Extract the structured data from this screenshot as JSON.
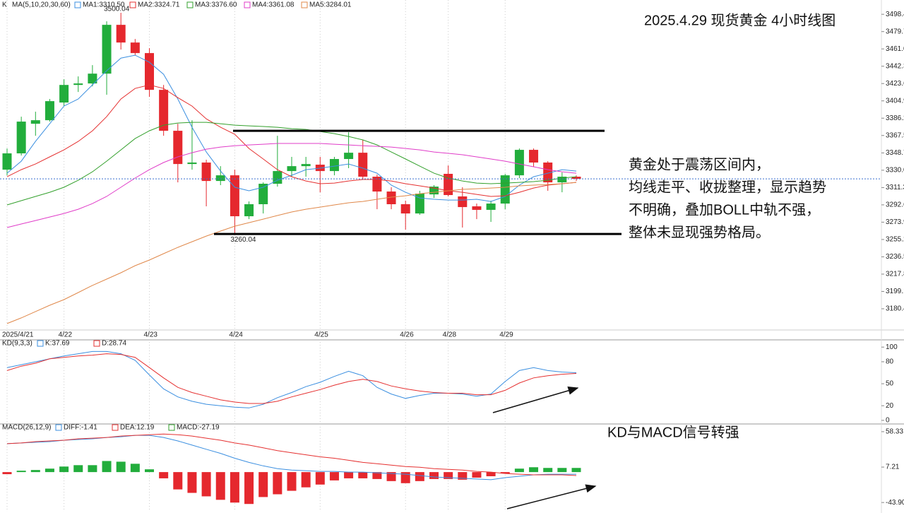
{
  "chart_data": [
    {
      "type": "candlestick",
      "symbol_label": "K",
      "indicator": "MA(5,10,20,30,60)",
      "title": "2025.4.29 现货黄金 4小时线图",
      "categories": [
        "2025/4/21",
        null,
        null,
        null,
        "4/22",
        null,
        null,
        null,
        null,
        null,
        "4/23",
        null,
        null,
        null,
        null,
        null,
        "4/24",
        null,
        null,
        null,
        null,
        null,
        "4/25",
        null,
        null,
        null,
        null,
        null,
        "4/26",
        null,
        null,
        "4/28",
        null,
        null,
        null,
        "4/29",
        null,
        null,
        null,
        null,
        null
      ],
      "open": [
        3330.6,
        3348.2,
        3380.2,
        3384.0,
        3403.1,
        3422.1,
        3423.7,
        3434.3,
        3487.0,
        3467.9,
        3456.5,
        3416.8,
        3372.6,
        3336.7,
        3338.3,
        3318.4,
        3324.5,
        3280.3,
        3293.3,
        3315.4,
        3329.1,
        3334.4,
        3336.0,
        3329.1,
        3342.1,
        3348.9,
        3323.0,
        3307.0,
        3293.3,
        3283.3,
        3303.9,
        3326.1,
        3301.7,
        3291.0,
        3287.2,
        3294.0,
        3324.5,
        3352.0,
        3338.3,
        3316.9,
        3323.0
      ],
      "high": [
        3353.5,
        3387.8,
        3393.2,
        3406.9,
        3428.2,
        3431.3,
        3443.5,
        3490.8,
        3500.04,
        3471.7,
        3461.8,
        3422.1,
        3380.2,
        3384.0,
        3341.3,
        3334.4,
        3330.6,
        3296.3,
        3316.9,
        3367.2,
        3344.4,
        3344.4,
        3344.4,
        3344.4,
        3371.0,
        3362.7,
        3325.3,
        3311.6,
        3297.1,
        3307.8,
        3313.9,
        3335.2,
        3311.6,
        3294.0,
        3297.1,
        3326.1,
        3353.5,
        3353.5,
        3339.8,
        3327.6,
        3324.5
      ],
      "low": [
        3324.5,
        3345.9,
        3367.2,
        3382.5,
        3399.3,
        3414.5,
        3420.6,
        3411.5,
        3460.3,
        3454.2,
        3409.2,
        3367.2,
        3316.9,
        3330.6,
        3291.0,
        3313.9,
        3260.04,
        3277.2,
        3283.3,
        3312.3,
        3323.0,
        3323.0,
        3306.2,
        3324.5,
        3332.2,
        3320.0,
        3287.9,
        3287.9,
        3265.8,
        3281.8,
        3300.1,
        3301.7,
        3268.1,
        3277.2,
        3274.2,
        3287.9,
        3321.5,
        3333.7,
        3307.8,
        3306.2,
        3318.4
      ],
      "close": [
        3348.2,
        3382.5,
        3384.0,
        3404.6,
        3422.1,
        3423.7,
        3434.3,
        3487.0,
        3467.9,
        3456.5,
        3416.8,
        3372.6,
        3336.7,
        3338.3,
        3318.4,
        3324.5,
        3280.3,
        3293.3,
        3315.4,
        3329.1,
        3334.4,
        3336.7,
        3329.1,
        3342.1,
        3348.9,
        3323.0,
        3307.0,
        3293.3,
        3283.3,
        3304.7,
        3312.3,
        3303.2,
        3290.2,
        3287.2,
        3294.0,
        3324.5,
        3352.0,
        3338.3,
        3316.9,
        3323.0,
        3320.7
      ],
      "up_color": "#22ad3c",
      "down_color": "#e5282e",
      "series": [
        {
          "name": "MA1:3310.50",
          "color": "#3b8fe0",
          "values": [
            3326.8,
            3339.8,
            3361.1,
            3380.2,
            3399.3,
            3406.9,
            3422.2,
            3437.4,
            3451.1,
            3454.2,
            3446.6,
            3433.6,
            3406.9,
            3376.4,
            3349.7,
            3329.1,
            3311.6,
            3307.8,
            3311.6,
            3319.2,
            3324.5,
            3330.6,
            3332.2,
            3334.4,
            3336.7,
            3332.2,
            3326.8,
            3313.9,
            3306.2,
            3300.1,
            3298.6,
            3297.8,
            3297.8,
            3298.6,
            3296.3,
            3301.7,
            3313.9,
            3323.0,
            3326.8,
            3330.6,
            3329.1
          ]
        },
        {
          "name": "MA2:3324.71",
          "color": "#e53030",
          "values": [
            3323.0,
            3330.6,
            3336.7,
            3344.4,
            3352.0,
            3361.1,
            3372.6,
            3387.8,
            3406.9,
            3418.3,
            3422.1,
            3418.3,
            3408.4,
            3399.3,
            3385.5,
            3376.4,
            3368.8,
            3353.5,
            3342.1,
            3330.6,
            3323.0,
            3318.4,
            3315.4,
            3316.1,
            3318.4,
            3320.0,
            3320.0,
            3318.4,
            3315.4,
            3313.1,
            3310.8,
            3307.8,
            3306.2,
            3303.9,
            3301.7,
            3302.4,
            3306.2,
            3310.8,
            3313.9,
            3315.4,
            3316.9
          ]
        },
        {
          "name": "MA3:3376.60",
          "color": "#33a02c",
          "values": [
            3292.5,
            3297.1,
            3301.7,
            3306.2,
            3311.6,
            3319.2,
            3328.3,
            3339.8,
            3352.0,
            3364.2,
            3372.6,
            3378.7,
            3381.0,
            3381.7,
            3381.7,
            3380.2,
            3378.7,
            3377.9,
            3377.2,
            3376.4,
            3374.9,
            3374.1,
            3371.8,
            3369.5,
            3366.5,
            3362.7,
            3357.3,
            3349.7,
            3342.1,
            3334.4,
            3326.8,
            3321.5,
            3318.4,
            3316.1,
            3315.4,
            3316.1,
            3316.9,
            3317.7,
            3319.2,
            3321.5,
            3323.0
          ]
        },
        {
          "name": "MA4:3361.08",
          "color": "#e03cc8",
          "values": [
            3268.1,
            3271.9,
            3275.7,
            3279.5,
            3283.3,
            3287.9,
            3294.0,
            3301.7,
            3311.6,
            3321.5,
            3330.6,
            3338.3,
            3344.4,
            3348.9,
            3352.7,
            3355.0,
            3356.5,
            3357.3,
            3358.1,
            3358.9,
            3358.9,
            3358.9,
            3358.9,
            3358.1,
            3357.3,
            3356.5,
            3355.8,
            3355.0,
            3353.5,
            3352.0,
            3349.7,
            3348.2,
            3346.7,
            3344.4,
            3342.1,
            3339.8,
            3336.7,
            3333.7,
            3330.6,
            3328.3,
            3326.8
          ]
        },
        {
          "name": "MA5:3284.01",
          "color": "#e0884a",
          "values": [
            3164.4,
            3170.5,
            3177.4,
            3184.2,
            3190.3,
            3197.9,
            3205.6,
            3212.4,
            3219.3,
            3226.9,
            3233.0,
            3239.9,
            3246.7,
            3252.8,
            3258.9,
            3264.3,
            3269.6,
            3273.4,
            3277.2,
            3281.1,
            3284.9,
            3287.9,
            3290.2,
            3292.5,
            3294.8,
            3296.3,
            3298.6,
            3300.9,
            3302.4,
            3304.7,
            3306.2,
            3307.8,
            3309.3,
            3310.0,
            3310.8,
            3311.6,
            3313.1,
            3313.9,
            3314.6,
            3315.4,
            3316.9
          ]
        }
      ],
      "ylim": [
        3159,
        3510
      ],
      "yticks": [
        3498.4,
        3479.7,
        {
          "value": 3461,
          "label": "3461.0"
        },
        3442.3,
        3423.6,
        3404.9,
        3386.2,
        3367.5,
        3348.7,
        {
          "value": 3330,
          "label": "3330.0"
        },
        3311.3,
        3292.6,
        3273.9,
        3255.2,
        3236.5,
        3217.8,
        3199.1,
        3180.4
      ],
      "reference_lines": [
        3372.6,
        3261.2
      ],
      "annotations": [
        "黄金处于震荡区间内，",
        "均线走平、收拢整理，显示趋势",
        "不明确，叠加BOLL中轨不强，",
        "整体未显现强势格局。"
      ]
    },
    {
      "type": "line",
      "title": "KD(9,3,3)",
      "series": [
        {
          "name": "K:37.69",
          "color": "#3b8fe0",
          "values": [
            72,
            76,
            80,
            84,
            88,
            91,
            94,
            94,
            91,
            82,
            62,
            43,
            32,
            26,
            22,
            20,
            18,
            17,
            22,
            31,
            38,
            46,
            52,
            60,
            67,
            61,
            45,
            36,
            30,
            34,
            37,
            37,
            36,
            33,
            36,
            53,
            68,
            72,
            68,
            66,
            65
          ]
        },
        {
          "name": "D:28.74",
          "color": "#e53030",
          "values": [
            68,
            74,
            78,
            84,
            86,
            88,
            89,
            91,
            90,
            86,
            72,
            58,
            45,
            38,
            33,
            28,
            25,
            23,
            23,
            26,
            32,
            37,
            42,
            48,
            53,
            56,
            53,
            47,
            43,
            40,
            38,
            37,
            37,
            35,
            35,
            41,
            51,
            58,
            61,
            63,
            64
          ]
        }
      ],
      "ylim": [
        -3,
        106
      ],
      "yticks": [
        0,
        20,
        50,
        80,
        100
      ]
    },
    {
      "type": "macd",
      "title": "MACD(26,12,9)",
      "series": [
        {
          "name": "DIFF:-1.41",
          "color": "#3b8fe0",
          "values": [
            41,
            42,
            43,
            44,
            46,
            47,
            48,
            50,
            51,
            53,
            53,
            50,
            45,
            39,
            33,
            27,
            20,
            14,
            9,
            5,
            3,
            2,
            1,
            1,
            0,
            0,
            -1,
            -2,
            -3,
            -5,
            -7,
            -8,
            -9,
            -10,
            -11,
            -8,
            -6,
            -4,
            -3,
            -3,
            -3
          ]
        },
        {
          "name": "DEA:12.19",
          "color": "#e53030",
          "values": [
            41,
            42,
            44,
            45,
            46,
            48,
            49,
            50,
            52,
            53,
            54,
            55,
            54,
            52,
            49,
            46,
            42,
            39,
            35,
            31,
            28,
            25,
            22,
            20,
            17,
            14,
            12,
            10,
            8,
            7,
            5,
            4,
            3,
            1,
            0,
            -2,
            -3,
            -4,
            -4,
            -4,
            -5
          ]
        }
      ],
      "histogram": {
        "name": "MACD:-27.19",
        "color": "#33a02c",
        "up_color": "#22ad3c",
        "down_color": "#e5282e",
        "values": [
          -3,
          2,
          3,
          5,
          8,
          10,
          10,
          16,
          15,
          12,
          4,
          -9,
          -25,
          -30,
          -35,
          -40,
          -44,
          -46,
          -36,
          -32,
          -27,
          -22,
          -18,
          -12,
          -9,
          -9,
          -10,
          -13,
          -16,
          -13,
          -10,
          -10,
          -11,
          -8,
          -6,
          -2,
          5,
          7,
          6,
          6,
          6
        ]
      },
      "ylim": [
        -57,
        66.4
      ],
      "yticks": [
        58.33,
        7.21,
        {
          "value": -43.9,
          "label": "-43.90"
        }
      ],
      "annotation": "KD与MACD信号转强"
    }
  ]
}
